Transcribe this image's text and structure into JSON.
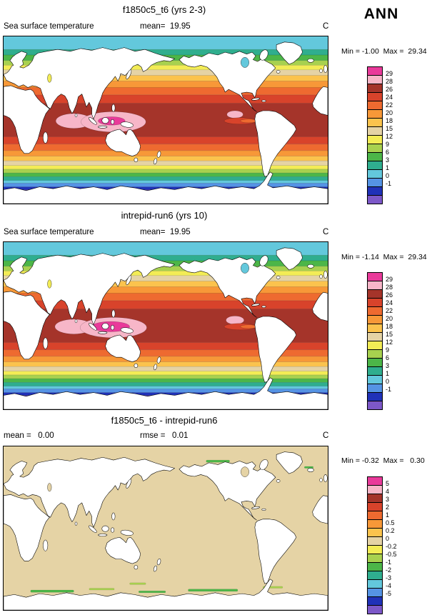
{
  "season_label": "ANN",
  "palette": [
    "#E93A9A",
    "#F7B6C8",
    "#A5342A",
    "#D8432B",
    "#EE6A30",
    "#F79838",
    "#FBC34D",
    "#E5D3A5",
    "#F3EC55",
    "#A8D14F",
    "#4CB648",
    "#2FAE8E",
    "#63C8DC",
    "#5593E4",
    "#2031B8",
    "#7C58C8"
  ],
  "panels": [
    {
      "title": "f1850c5_t6 (yrs 2-3)",
      "subtitle_left": "Sea surface temperature",
      "subtitle_center": "mean=  19.95",
      "units": "C",
      "stats": "Min = -1.00  Max =  29.34",
      "colorbar_labels": [
        "29",
        "28",
        "26",
        "24",
        "22",
        "20",
        "18",
        "15",
        "12",
        "9",
        "6",
        "3",
        "1",
        "0",
        "-1"
      ],
      "map": "sst_a"
    },
    {
      "title": "intrepid-run6 (yrs 10)",
      "subtitle_left": "Sea surface temperature",
      "subtitle_center": "mean=  19.95",
      "units": "C",
      "stats": "Min = -1.14  Max =  29.34",
      "colorbar_labels": [
        "29",
        "28",
        "26",
        "24",
        "22",
        "20",
        "18",
        "15",
        "12",
        "9",
        "6",
        "3",
        "1",
        "0",
        "-1"
      ],
      "map": "sst_b"
    },
    {
      "title": "f1850c5_t6 - intrepid-run6",
      "subtitle_left": "mean =   0.00",
      "subtitle_center": "rmse =   0.01",
      "units": "C",
      "stats": "Min = -0.32  Max =   0.30",
      "colorbar_labels": [
        "5",
        "4",
        "3",
        "2",
        "1",
        "0.5",
        "0.2",
        "0",
        "-0.2",
        "-0.5",
        "-1",
        "-2",
        "-3",
        "-4",
        "-5"
      ],
      "map": "diff"
    }
  ],
  "chart_data": {
    "type": "heatmap",
    "levels_sst": [
      29,
      28,
      26,
      24,
      22,
      20,
      18,
      15,
      12,
      9,
      6,
      3,
      1,
      0,
      -1
    ],
    "levels_diff": [
      5,
      4,
      3,
      2,
      1,
      0.5,
      0.2,
      0,
      -0.2,
      -0.5,
      -1,
      -2,
      -3,
      -4,
      -5
    ],
    "panel_stats": [
      {
        "panel": "f1850c5_t6 (yrs 2-3)",
        "variable": "Sea surface temperature",
        "mean": 19.95,
        "min": -1.0,
        "max": 29.34,
        "units": "C"
      },
      {
        "panel": "intrepid-run6 (yrs 10)",
        "variable": "Sea surface temperature",
        "mean": 19.95,
        "min": -1.14,
        "max": 29.34,
        "units": "C"
      },
      {
        "panel": "f1850c5_t6 - intrepid-run6",
        "mean": 0.0,
        "rmse": 0.01,
        "min": -0.32,
        "max": 0.3,
        "units": "C"
      }
    ],
    "zonal_bands": [
      [
        0,
        14,
        12
      ],
      [
        14,
        20,
        11
      ],
      [
        20,
        26,
        10
      ],
      [
        26,
        31,
        9
      ],
      [
        31,
        36,
        8
      ],
      [
        36,
        42,
        7
      ],
      [
        42,
        48,
        6
      ],
      [
        48,
        55,
        5
      ],
      [
        55,
        63,
        4
      ],
      [
        63,
        72,
        3
      ],
      [
        72,
        108,
        2
      ],
      [
        108,
        116,
        3
      ],
      [
        116,
        123,
        4
      ],
      [
        123,
        129,
        5
      ],
      [
        129,
        134,
        6
      ],
      [
        134,
        139,
        7
      ],
      [
        139,
        143,
        8
      ],
      [
        143,
        147,
        9
      ],
      [
        147,
        151,
        10
      ],
      [
        151,
        155,
        11
      ],
      [
        155,
        158,
        12
      ],
      [
        158,
        162,
        13
      ],
      [
        162,
        165,
        14
      ],
      [
        165,
        180,
        15
      ]
    ],
    "maps": {
      "sst_a": {
        "kind": "zonal",
        "blobs": [
          [
            78,
            91,
            20,
            8,
            1
          ],
          [
            122,
            92,
            36,
            11,
            1
          ],
          [
            120,
            91,
            15,
            4.5,
            0
          ],
          [
            257,
            84,
            9,
            4,
            1
          ],
          [
            263,
            91,
            18,
            3.5,
            3
          ],
          [
            272,
            91,
            9,
            2,
            4
          ]
        ],
        "lakes": [
          [
            "hudson",
            12
          ],
          [
            "caspian",
            8
          ]
        ]
      },
      "sst_b": {
        "kind": "zonal",
        "blobs": [
          [
            78,
            91,
            21,
            8,
            1
          ],
          [
            122,
            92,
            37,
            11,
            1
          ],
          [
            119,
            91,
            21,
            5.5,
            0
          ],
          [
            257,
            84,
            10,
            4.5,
            1
          ],
          [
            263,
            91,
            18,
            3.5,
            3
          ],
          [
            272,
            91,
            9,
            2,
            4
          ]
        ],
        "lakes": [
          [
            "hudson",
            12
          ],
          [
            "caspian",
            8
          ]
        ]
      },
      "diff": {
        "kind": "uniform",
        "fill": 7,
        "streaks": [
          [
            30,
            158,
            48,
            2.5,
            10
          ],
          [
            95,
            156,
            28,
            2,
            9
          ],
          [
            150,
            159,
            30,
            2,
            10
          ],
          [
            205,
            157,
            55,
            2.5,
            10
          ],
          [
            288,
            154,
            22,
            2,
            9
          ],
          [
            225,
            15,
            26,
            2.5,
            10
          ],
          [
            334,
            22,
            10,
            2,
            10
          ],
          [
            140,
            150,
            18,
            2,
            9
          ]
        ],
        "lakes": [
          [
            "hudson",
            7
          ],
          [
            "caspian",
            7
          ]
        ]
      }
    }
  }
}
